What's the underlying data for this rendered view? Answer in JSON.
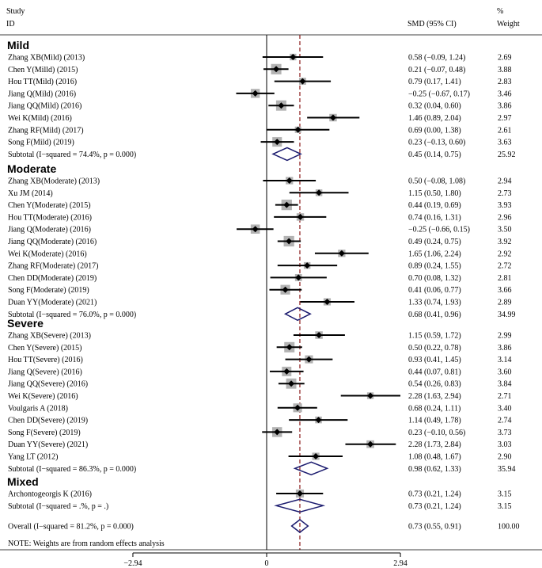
{
  "header": {
    "study_line1": "Study",
    "study_line2": "ID",
    "effect_label": "SMD (95% CI)",
    "weight_line1": "%",
    "weight_line2": "Weight"
  },
  "chart_data": {
    "type": "forest",
    "pooled_effect": 0.73,
    "axis": {
      "ticks": [
        -2.94,
        0,
        2.94
      ],
      "tick_labels": [
        "−2.94",
        "0",
        "2.94"
      ],
      "range": [
        -2.94,
        2.94
      ]
    },
    "groups": [
      {
        "name": "Mild",
        "studies": [
          {
            "id": "Zhang XB(Mild) (2013)",
            "est": 0.58,
            "lo": -0.09,
            "hi": 1.24,
            "ci_text": "0.58 (−0.09, 1.24)",
            "weight": "2.69"
          },
          {
            "id": "Chen Y(Milld) (2015)",
            "est": 0.21,
            "lo": -0.07,
            "hi": 0.48,
            "ci_text": "0.21 (−0.07, 0.48)",
            "weight": "3.88"
          },
          {
            "id": "Hou TT(Mild) (2016)",
            "est": 0.79,
            "lo": 0.17,
            "hi": 1.41,
            "ci_text": "0.79 (0.17, 1.41)",
            "weight": "2.83"
          },
          {
            "id": "Jiang Q(Mild) (2016)",
            "est": -0.25,
            "lo": -0.67,
            "hi": 0.17,
            "ci_text": "−0.25 (−0.67, 0.17)",
            "weight": "3.46"
          },
          {
            "id": "Jiang QQ(Mild) (2016)",
            "est": 0.32,
            "lo": 0.04,
            "hi": 0.6,
            "ci_text": "0.32 (0.04, 0.60)",
            "weight": "3.86"
          },
          {
            "id": "Wei K(Mild) (2016)",
            "est": 1.46,
            "lo": 0.89,
            "hi": 2.04,
            "ci_text": "1.46 (0.89, 2.04)",
            "weight": "2.97"
          },
          {
            "id": "Zhang RF(Mild) (2017)",
            "est": 0.69,
            "lo": 0.0,
            "hi": 1.38,
            "ci_text": "0.69 (0.00, 1.38)",
            "weight": "2.61"
          },
          {
            "id": "Song F(Mild) (2019)",
            "est": 0.23,
            "lo": -0.13,
            "hi": 0.6,
            "ci_text": "0.23 (−0.13, 0.60)",
            "weight": "3.63"
          }
        ],
        "subtotal": {
          "label": "Subtotal  (I−squared = 74.4%, p = 0.000)",
          "est": 0.45,
          "lo": 0.14,
          "hi": 0.75,
          "ci_text": "0.45 (0.14, 0.75)",
          "weight": "25.92"
        }
      },
      {
        "name": "Moderate",
        "studies": [
          {
            "id": "Zhang XB(Moderate) (2013)",
            "est": 0.5,
            "lo": -0.08,
            "hi": 1.08,
            "ci_text": "0.50 (−0.08, 1.08)",
            "weight": "2.94"
          },
          {
            "id": "Xu JM (2014)",
            "est": 1.15,
            "lo": 0.5,
            "hi": 1.8,
            "ci_text": "1.15 (0.50, 1.80)",
            "weight": "2.73"
          },
          {
            "id": "Chen Y(Moderate) (2015)",
            "est": 0.44,
            "lo": 0.19,
            "hi": 0.69,
            "ci_text": "0.44 (0.19, 0.69)",
            "weight": "3.93"
          },
          {
            "id": "Hou TT(Moderate) (2016)",
            "est": 0.74,
            "lo": 0.16,
            "hi": 1.31,
            "ci_text": "0.74 (0.16, 1.31)",
            "weight": "2.96"
          },
          {
            "id": "Jiang Q(Moderate) (2016)",
            "est": -0.25,
            "lo": -0.66,
            "hi": 0.15,
            "ci_text": "−0.25 (−0.66, 0.15)",
            "weight": "3.50"
          },
          {
            "id": "Jiang QQ(Moderate) (2016)",
            "est": 0.49,
            "lo": 0.24,
            "hi": 0.75,
            "ci_text": "0.49 (0.24, 0.75)",
            "weight": "3.92"
          },
          {
            "id": "Wei K(Moderate) (2016)",
            "est": 1.65,
            "lo": 1.06,
            "hi": 2.24,
            "ci_text": "1.65 (1.06, 2.24)",
            "weight": "2.92"
          },
          {
            "id": "Zhang RF(Moderate) (2017)",
            "est": 0.89,
            "lo": 0.24,
            "hi": 1.55,
            "ci_text": "0.89 (0.24, 1.55)",
            "weight": "2.72"
          },
          {
            "id": "Chen DD(Moderate) (2019)",
            "est": 0.7,
            "lo": 0.08,
            "hi": 1.32,
            "ci_text": "0.70 (0.08, 1.32)",
            "weight": "2.81"
          },
          {
            "id": "Song F(Moderate) (2019)",
            "est": 0.41,
            "lo": 0.06,
            "hi": 0.77,
            "ci_text": "0.41 (0.06, 0.77)",
            "weight": "3.66"
          },
          {
            "id": "Duan YY(Moderate) (2021)",
            "est": 1.33,
            "lo": 0.74,
            "hi": 1.93,
            "ci_text": "1.33 (0.74, 1.93)",
            "weight": "2.89"
          }
        ],
        "subtotal": {
          "label": "Subtotal  (I−squared = 76.0%, p = 0.000)",
          "est": 0.68,
          "lo": 0.41,
          "hi": 0.96,
          "ci_text": "0.68 (0.41, 0.96)",
          "weight": "34.99"
        }
      },
      {
        "name": "Severe",
        "studies": [
          {
            "id": "Zhang XB(Severe) (2013)",
            "est": 1.15,
            "lo": 0.59,
            "hi": 1.72,
            "ci_text": "1.15 (0.59, 1.72)",
            "weight": "2.99"
          },
          {
            "id": "Chen Y(Severe) (2015)",
            "est": 0.5,
            "lo": 0.22,
            "hi": 0.78,
            "ci_text": "0.50 (0.22, 0.78)",
            "weight": "3.86"
          },
          {
            "id": "Hou TT(Severe) (2016)",
            "est": 0.93,
            "lo": 0.41,
            "hi": 1.45,
            "ci_text": "0.93 (0.41, 1.45)",
            "weight": "3.14"
          },
          {
            "id": "Jiang Q(Severe) (2016)",
            "est": 0.44,
            "lo": 0.07,
            "hi": 0.81,
            "ci_text": "0.44 (0.07, 0.81)",
            "weight": "3.60"
          },
          {
            "id": "Jiang QQ(Severe) (2016)",
            "est": 0.54,
            "lo": 0.26,
            "hi": 0.83,
            "ci_text": "0.54 (0.26, 0.83)",
            "weight": "3.84"
          },
          {
            "id": "Wei K(Severe) (2016)",
            "est": 2.28,
            "lo": 1.63,
            "hi": 2.94,
            "ci_text": "2.28 (1.63, 2.94)",
            "weight": "2.71"
          },
          {
            "id": "Voulgaris A (2018)",
            "est": 0.68,
            "lo": 0.24,
            "hi": 1.11,
            "ci_text": "0.68 (0.24, 1.11)",
            "weight": "3.40"
          },
          {
            "id": "Chen DD(Severe) (2019)",
            "est": 1.14,
            "lo": 0.49,
            "hi": 1.78,
            "ci_text": "1.14 (0.49, 1.78)",
            "weight": "2.74"
          },
          {
            "id": "Song F(Severe) (2019)",
            "est": 0.23,
            "lo": -0.1,
            "hi": 0.56,
            "ci_text": "0.23 (−0.10, 0.56)",
            "weight": "3.73"
          },
          {
            "id": "Duan YY(Severe) (2021)",
            "est": 2.28,
            "lo": 1.73,
            "hi": 2.84,
            "ci_text": "2.28 (1.73, 2.84)",
            "weight": "3.03"
          },
          {
            "id": "Yang LT (2012)",
            "est": 1.08,
            "lo": 0.48,
            "hi": 1.67,
            "ci_text": "1.08 (0.48, 1.67)",
            "weight": "2.90"
          }
        ],
        "subtotal": {
          "label": "Subtotal  (I−squared = 86.3%, p = 0.000)",
          "est": 0.98,
          "lo": 0.62,
          "hi": 1.33,
          "ci_text": "0.98 (0.62, 1.33)",
          "weight": "35.94"
        }
      },
      {
        "name": "Mixed",
        "studies": [
          {
            "id": "Archontogeorgis K (2016)",
            "est": 0.73,
            "lo": 0.21,
            "hi": 1.24,
            "ci_text": "0.73 (0.21, 1.24)",
            "weight": "3.15"
          }
        ],
        "subtotal": {
          "label": "Subtotal  (I−squared = .%, p = .)",
          "est": 0.73,
          "lo": 0.21,
          "hi": 1.24,
          "ci_text": "0.73 (0.21, 1.24)",
          "weight": "3.15"
        }
      }
    ],
    "overall": {
      "label": "Overall  (I−squared = 81.2%, p = 0.000)",
      "est": 0.73,
      "lo": 0.55,
      "hi": 0.91,
      "ci_text": "0.73 (0.55, 0.91)",
      "weight": "100.00"
    },
    "note": "NOTE: Weights are from random effects analysis"
  },
  "colors": {
    "diamond_stroke": "#1a1a6e",
    "reference_line": "#8b1a1a",
    "weight_box": "#b3b3b3",
    "ink": "#000000"
  }
}
